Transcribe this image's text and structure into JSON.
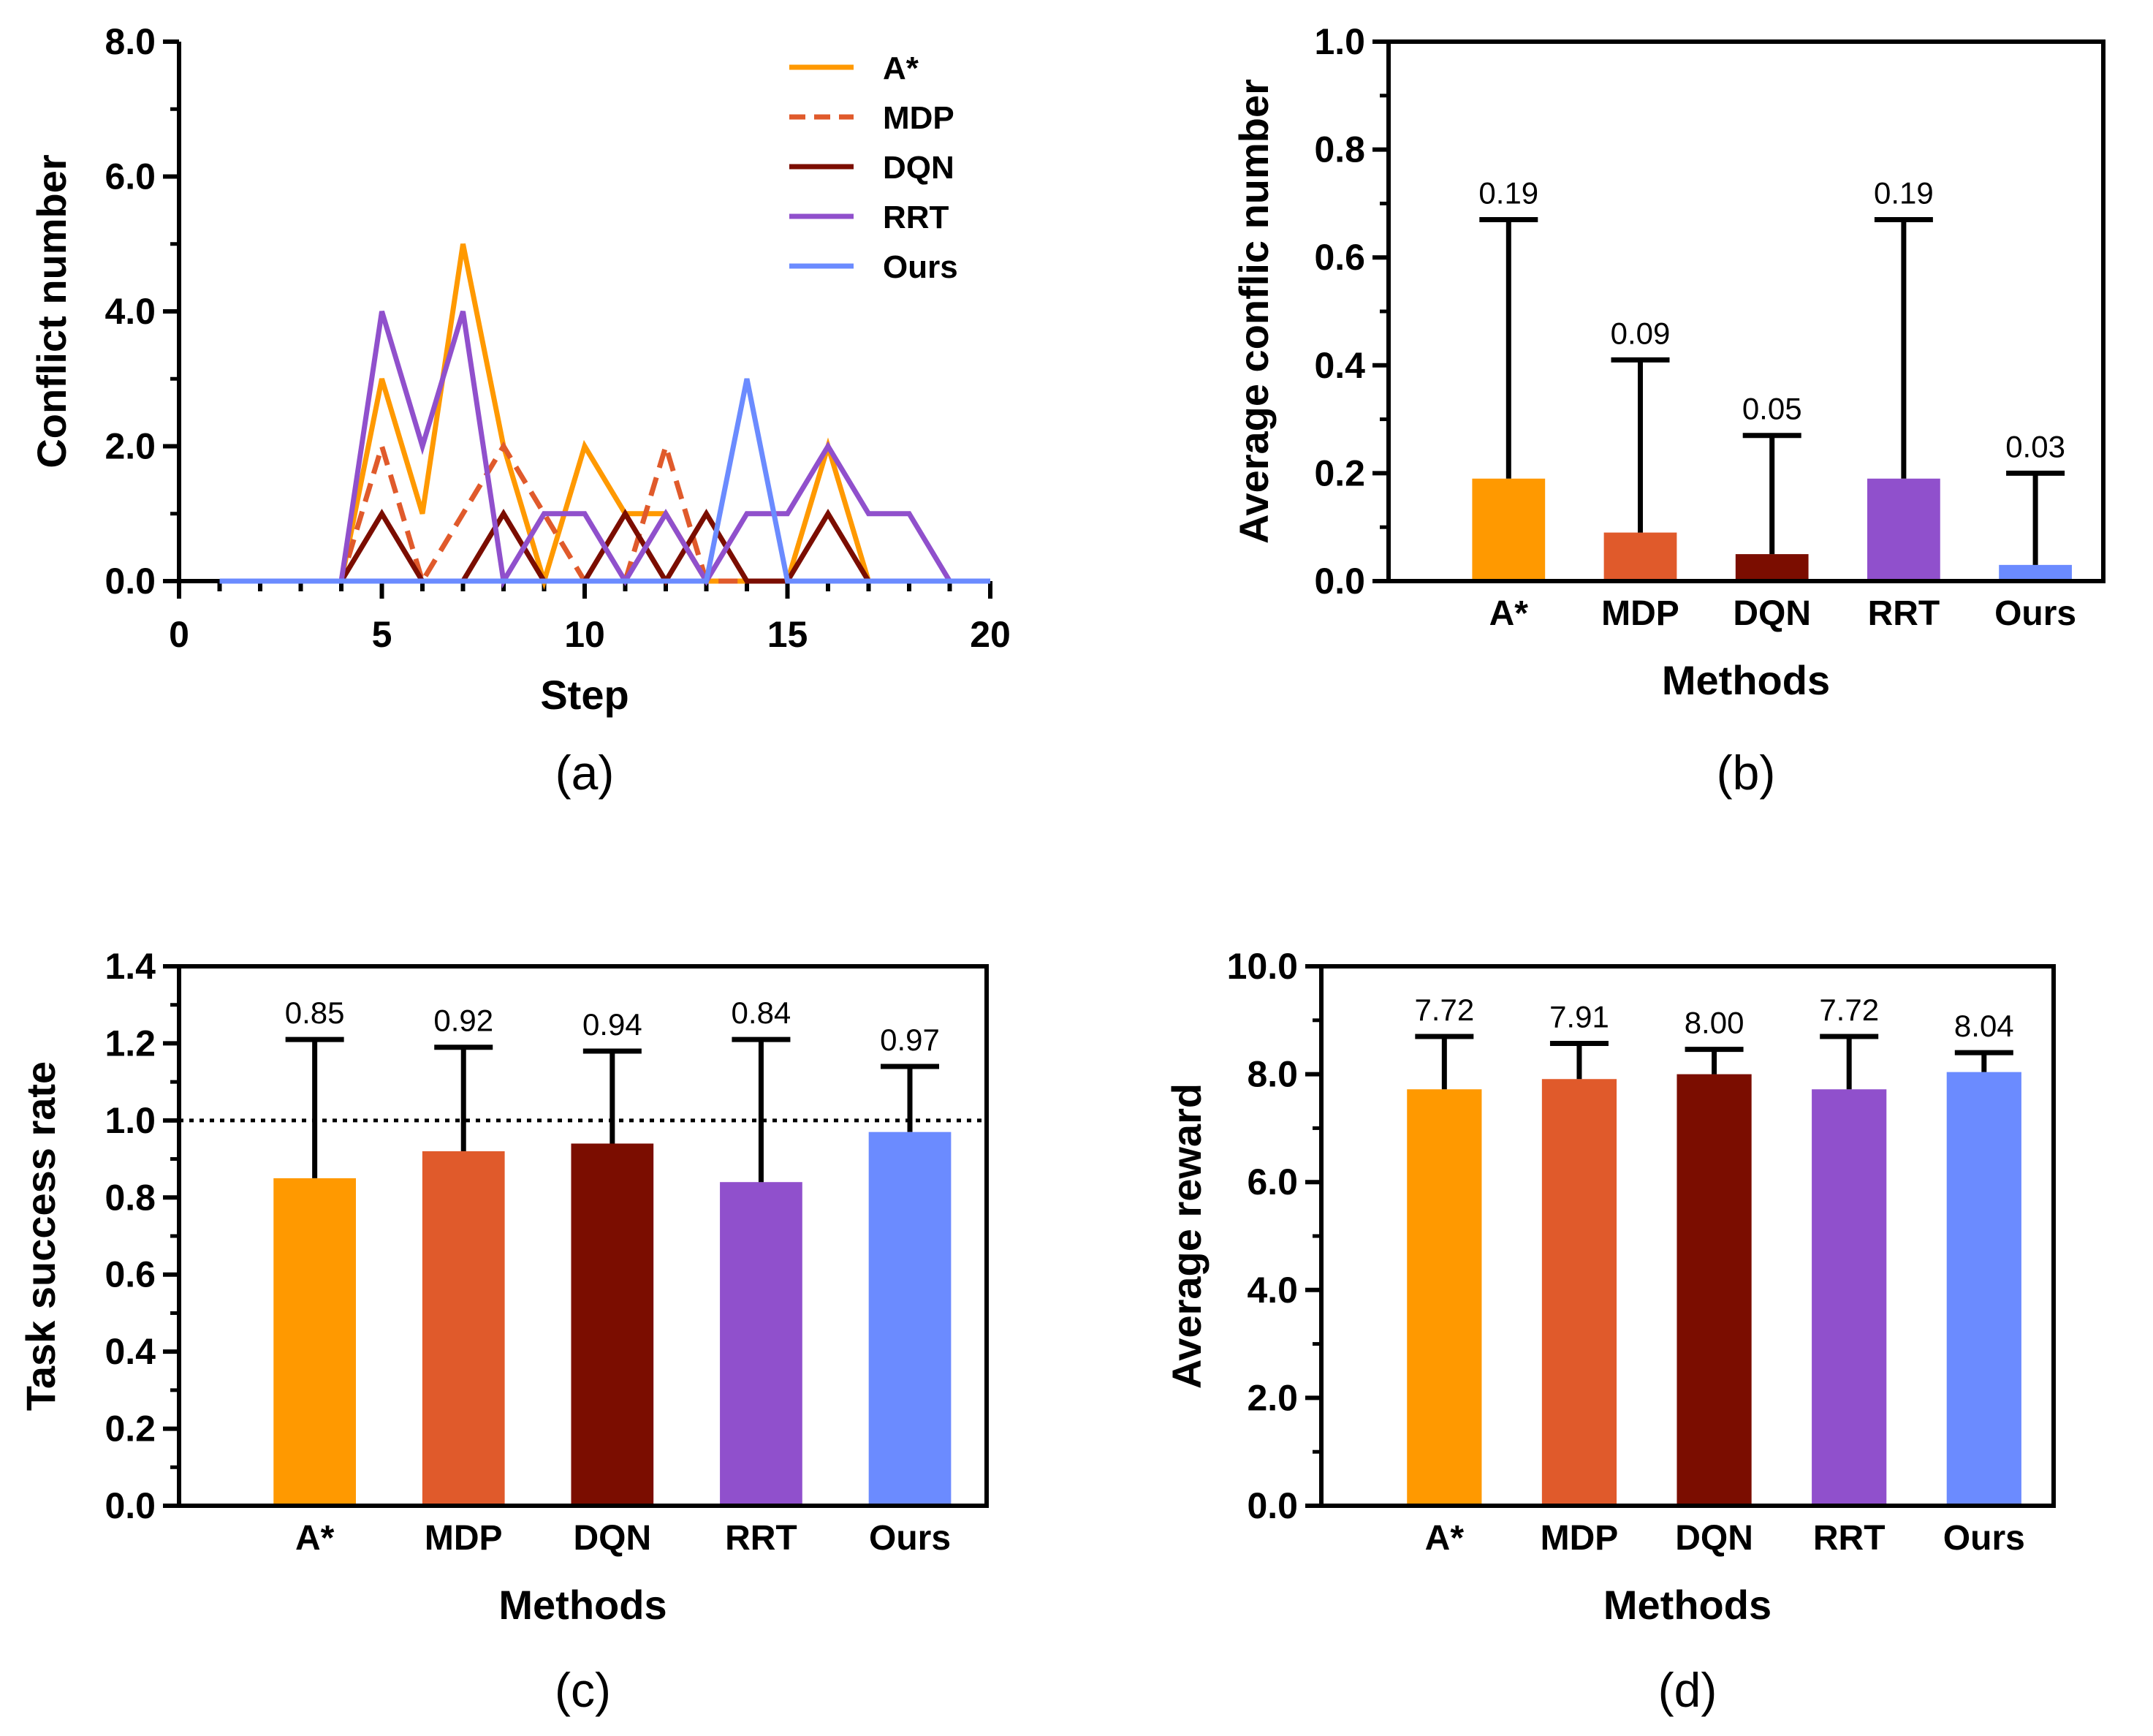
{
  "colors": {
    "A*": "#FF9900",
    "MDP": "#E05A2B",
    "DQN": "#7B0D00",
    "RRT": "#9050CC",
    "Ours": "#6B8BFF"
  },
  "chart_data": [
    {
      "id": "a",
      "type": "line",
      "caption": "(a)",
      "xlabel": "Step",
      "ylabel": "Conflict number",
      "xlim": [
        0,
        20
      ],
      "ylim": [
        0,
        8
      ],
      "xticks": [
        "0",
        "5",
        "10",
        "15",
        "20"
      ],
      "yticks": [
        "0.0",
        "2.0",
        "4.0",
        "6.0",
        "8.0"
      ],
      "legend_position": "top-right",
      "x": [
        1,
        2,
        3,
        4,
        5,
        6,
        7,
        8,
        9,
        10,
        11,
        12,
        13,
        14,
        15,
        16,
        17,
        18,
        19,
        20
      ],
      "series": [
        {
          "name": "A*",
          "style": "solid",
          "values": [
            0,
            0,
            0,
            0,
            3,
            1,
            5,
            2,
            0,
            2,
            1,
            1,
            0,
            0,
            0,
            2,
            0,
            0,
            0,
            0
          ]
        },
        {
          "name": "MDP",
          "style": "dashed",
          "values": [
            0,
            0,
            0,
            0,
            2,
            0,
            1,
            2,
            1,
            0,
            0,
            2,
            0,
            0,
            0,
            0,
            0,
            0,
            0,
            0
          ]
        },
        {
          "name": "DQN",
          "style": "solid",
          "values": [
            0,
            0,
            0,
            0,
            1,
            0,
            0,
            1,
            0,
            0,
            1,
            0,
            1,
            0,
            0,
            1,
            0,
            0,
            0,
            0
          ]
        },
        {
          "name": "RRT",
          "style": "solid",
          "values": [
            0,
            0,
            0,
            0,
            4,
            2,
            4,
            0,
            1,
            1,
            0,
            1,
            0,
            1,
            1,
            2,
            1,
            1,
            0,
            0
          ]
        },
        {
          "name": "Ours",
          "style": "solid",
          "values": [
            0,
            0,
            0,
            0,
            0,
            0,
            0,
            0,
            0,
            0,
            0,
            0,
            0,
            3,
            0,
            0,
            0,
            0,
            0,
            0
          ]
        }
      ]
    },
    {
      "id": "b",
      "type": "bar",
      "caption": "(b)",
      "xlabel": "Methods",
      "ylabel": "Average conflic number",
      "ylim": [
        0,
        1.0
      ],
      "yticks": [
        "0.0",
        "0.2",
        "0.4",
        "0.6",
        "0.8",
        "1.0"
      ],
      "categories": [
        "A*",
        "MDP",
        "DQN",
        "RRT",
        "Ours"
      ],
      "values": [
        0.19,
        0.09,
        0.05,
        0.19,
        0.03
      ],
      "error_top": [
        0.67,
        0.41,
        0.27,
        0.67,
        0.2
      ],
      "value_labels": [
        "0.19",
        "0.09",
        "0.05",
        "0.19",
        "0.03"
      ]
    },
    {
      "id": "c",
      "type": "bar",
      "caption": "(c)",
      "xlabel": "Methods",
      "ylabel": "Task success rate",
      "ylim": [
        0,
        1.4
      ],
      "yticks": [
        "0.0",
        "0.2",
        "0.4",
        "0.6",
        "0.8",
        "1.0",
        "1.2",
        "1.4"
      ],
      "categories": [
        "A*",
        "MDP",
        "DQN",
        "RRT",
        "Ours"
      ],
      "values": [
        0.85,
        0.92,
        0.94,
        0.84,
        0.97
      ],
      "error_top": [
        1.21,
        1.19,
        1.18,
        1.21,
        1.14
      ],
      "value_labels": [
        "0.85",
        "0.92",
        "0.94",
        "0.84",
        "0.97"
      ],
      "reference_line": 1.0
    },
    {
      "id": "d",
      "type": "bar",
      "caption": "(d)",
      "xlabel": "Methods",
      "ylabel": "Average reward",
      "ylim": [
        0,
        10
      ],
      "yticks": [
        "0.0",
        "2.0",
        "4.0",
        "6.0",
        "8.0",
        "10.0"
      ],
      "categories": [
        "A*",
        "MDP",
        "DQN",
        "RRT",
        "Ours"
      ],
      "values": [
        7.72,
        7.91,
        8.0,
        7.72,
        8.04
      ],
      "error_top": [
        8.7,
        8.57,
        8.46,
        8.7,
        8.4
      ],
      "value_labels": [
        "7.72",
        "7.91",
        "8.00",
        "7.72",
        "8.04"
      ]
    }
  ]
}
